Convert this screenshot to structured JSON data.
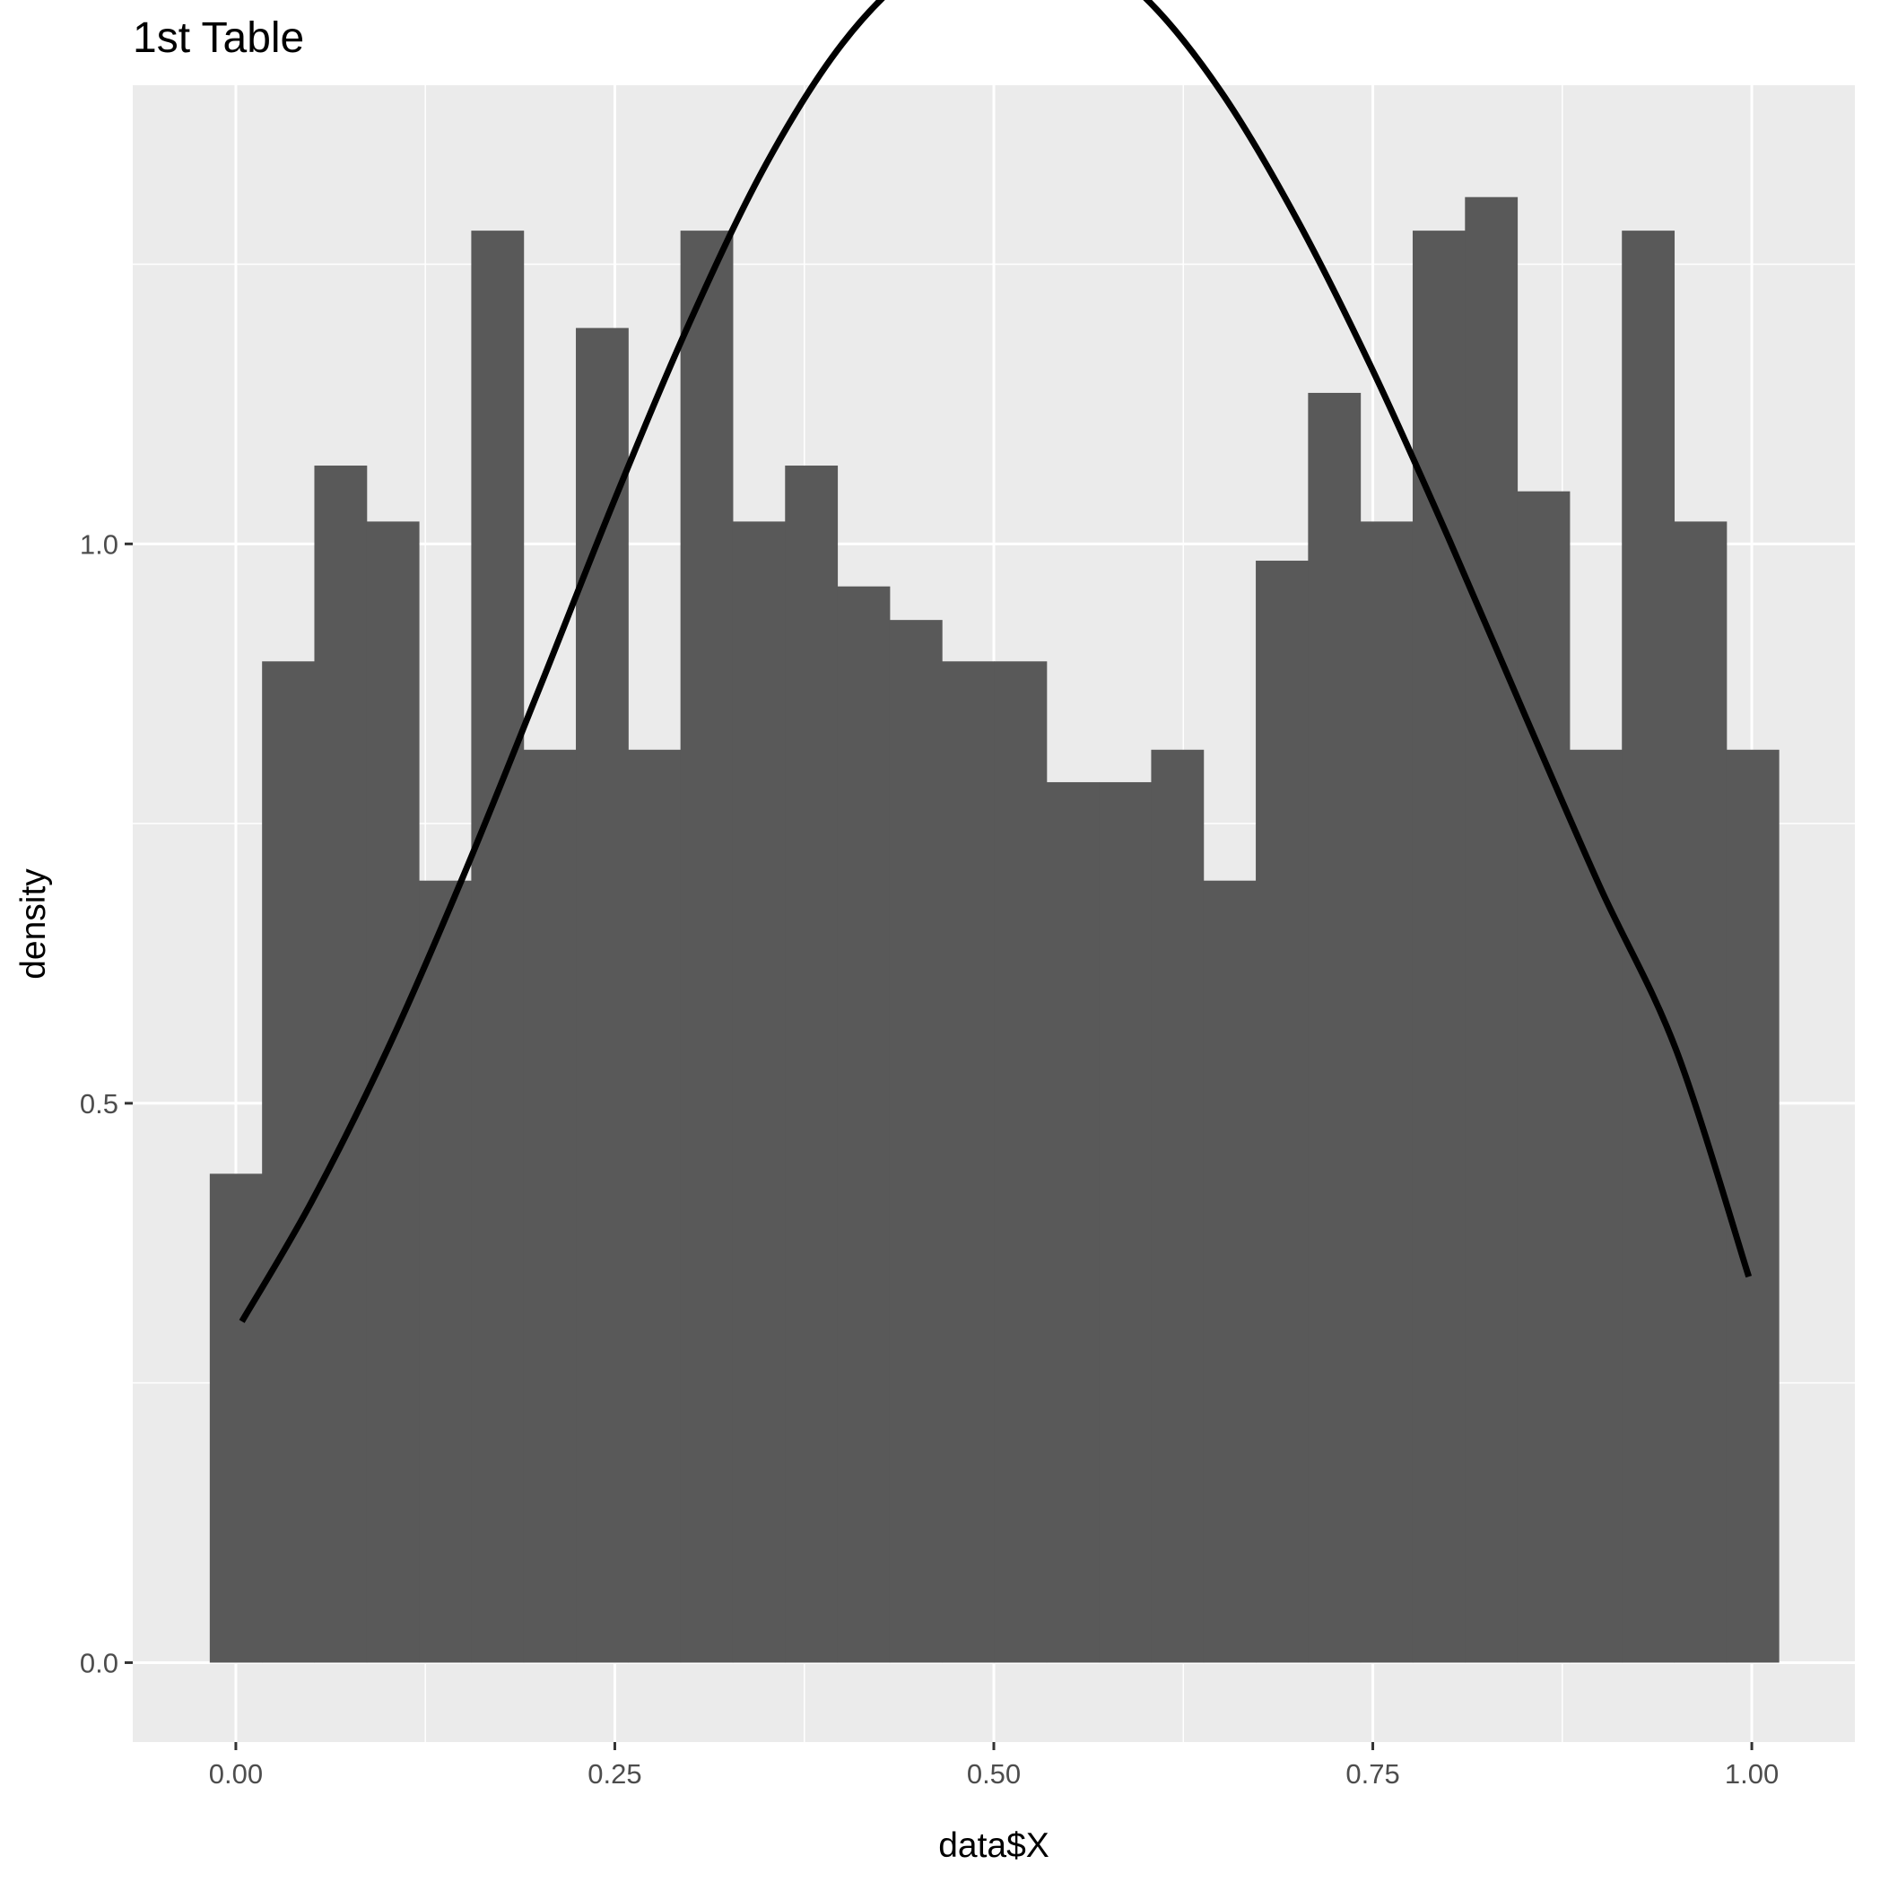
{
  "chart_data": {
    "type": "bar",
    "title": "1st Table",
    "xlabel": "data$X",
    "ylabel": "density",
    "xlim": [
      -0.068,
      1.068
    ],
    "ylim": [
      -0.071,
      1.41
    ],
    "x_ticks": [
      0,
      0.25,
      0.5,
      0.75,
      1
    ],
    "x_tick_labels": [
      "0.00",
      "0.25",
      "0.50",
      "0.75",
      "1.00"
    ],
    "x_minor_ticks": [
      0.125,
      0.375,
      0.625,
      0.875
    ],
    "y_ticks": [
      0,
      0.5,
      1
    ],
    "y_tick_labels": [
      "0.0",
      "0.5",
      "1.0"
    ],
    "y_minor_ticks": [
      0.25,
      0.75,
      1.25
    ],
    "grid": true,
    "legend": "none",
    "bins": {
      "start": -0.0172,
      "width": 0.0345,
      "values": [
        0.437,
        0.895,
        1.07,
        1.02,
        0.699,
        1.28,
        0.816,
        1.193,
        0.816,
        1.28,
        1.02,
        1.07,
        0.962,
        0.932,
        0.895,
        0.895,
        0.787,
        0.787,
        0.816,
        0.699,
        0.985,
        1.135,
        1.02,
        1.28,
        1.31,
        1.047,
        0.816,
        1.28,
        1.02,
        0.816
      ]
    },
    "series": [
      {
        "type": "line",
        "x": [
          0.004,
          0.05,
          0.1,
          0.15,
          0.2,
          0.25,
          0.3,
          0.35,
          0.4,
          0.45,
          0.5,
          0.512,
          0.55,
          0.6,
          0.65,
          0.7,
          0.75,
          0.8,
          0.85,
          0.9,
          0.95,
          0.998
        ],
        "y": [
          0.305,
          0.412,
          0.548,
          0.703,
          0.87,
          1.04,
          1.2,
          1.34,
          1.447,
          1.515,
          1.545,
          1.546,
          1.536,
          1.488,
          1.404,
          1.29,
          1.155,
          1.005,
          0.848,
          0.693,
          0.548,
          0.345
        ]
      }
    ],
    "colors": {
      "panel": "#EBEBEB",
      "grid": "#FFFFFF",
      "bar": "#595959",
      "line": "#000000",
      "tick": "#333333",
      "tick_text": "#4D4D4D",
      "text": "#000000"
    }
  }
}
